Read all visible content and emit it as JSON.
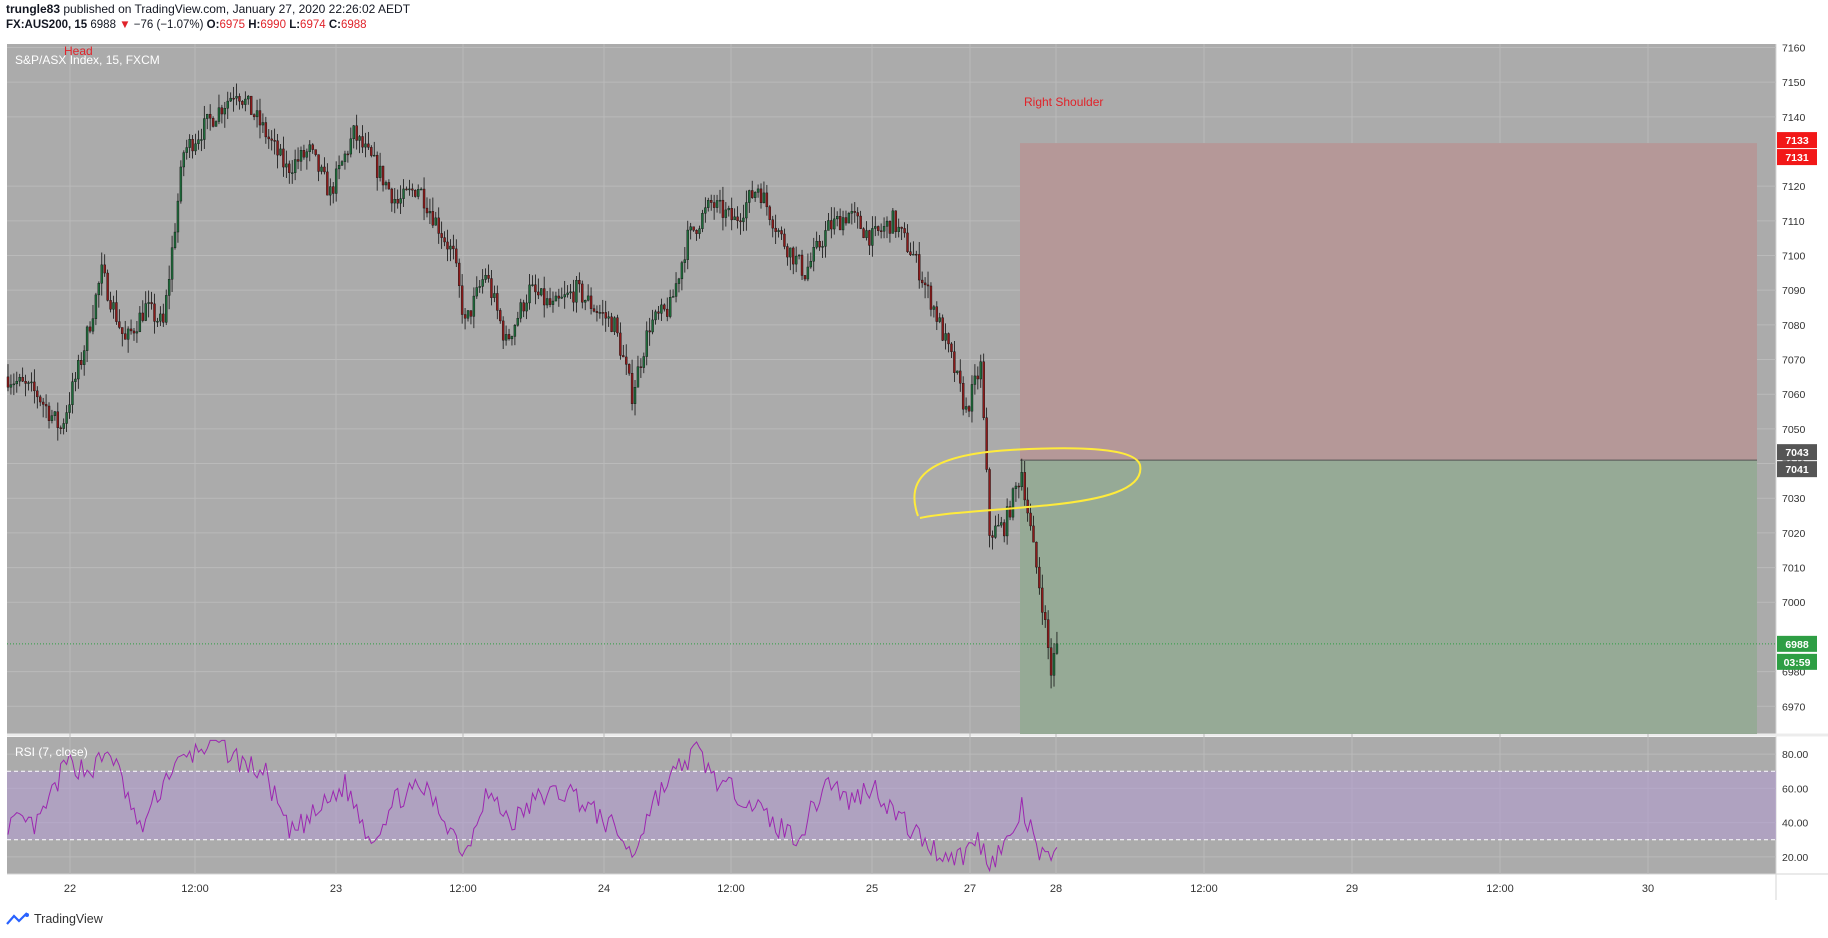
{
  "header": {
    "author": "trungle83",
    "published_text": "published on TradingView.com, January 27, 2020 22:26:02 AEDT",
    "symbol": "FX:AUS200, 15",
    "last": "6988",
    "change": "−76 (−1.07%)",
    "o_label": "O:",
    "o_value": "6975",
    "h_label": "H:",
    "h_value": "6990",
    "l_label": "L:",
    "l_value": "6974",
    "c_label": "C:",
    "c_value": "6988"
  },
  "chart": {
    "title": "S&P/ASX Index, 15, FXCM",
    "annotation_head": "Head",
    "annotation_right_shoulder": "Right Shoulder",
    "rsi_label": "RSI (7, close)"
  },
  "footer": {
    "brand": "TradingView",
    "logo_icon": "tradingview-logo-icon"
  },
  "colors": {
    "chart_bg": "#ababab",
    "grid": "#bababa",
    "up": "#1e6b3a",
    "down": "#8b1a1a",
    "stop_zone": "#b59898",
    "target_zone": "#96aa96",
    "rsi_line": "#9c27b0",
    "rsi_band": "#b39dce",
    "highlight": "#ffeb3b",
    "price_tag": "#2e9e44",
    "stop_tag": "#f21818"
  },
  "chart_data": [
    {
      "type": "candlestick",
      "title": "S&P/ASX Index, 15, FXCM",
      "y_ticks": [
        6970,
        6980,
        7000,
        7010,
        7020,
        7030,
        7040,
        7050,
        7060,
        7070,
        7080,
        7090,
        7100,
        7110,
        7120,
        7140,
        7150,
        7160
      ],
      "ylim": [
        6962,
        7161
      ],
      "x_ticks": [
        "22",
        "12:00",
        "23",
        "12:00",
        "24",
        "12:00",
        "25",
        "27",
        "28",
        "12:00",
        "29",
        "12:00",
        "30"
      ],
      "anchors": [
        [
          0,
          7065
        ],
        [
          10,
          7060
        ],
        [
          18,
          7050
        ],
        [
          25,
          7070
        ],
        [
          32,
          7095
        ],
        [
          40,
          7075
        ],
        [
          47,
          7085
        ],
        [
          53,
          7080
        ],
        [
          60,
          7130
        ],
        [
          70,
          7140
        ],
        [
          78,
          7148
        ],
        [
          86,
          7138
        ],
        [
          95,
          7125
        ],
        [
          103,
          7130
        ],
        [
          110,
          7118
        ],
        [
          118,
          7135
        ],
        [
          126,
          7125
        ],
        [
          133,
          7115
        ],
        [
          140,
          7120
        ],
        [
          146,
          7110
        ],
        [
          152,
          7100
        ],
        [
          156,
          7080
        ],
        [
          163,
          7095
        ],
        [
          170,
          7075
        ],
        [
          178,
          7090
        ],
        [
          186,
          7085
        ],
        [
          194,
          7090
        ],
        [
          200,
          7085
        ],
        [
          207,
          7080
        ],
        [
          213,
          7060
        ],
        [
          219,
          7080
        ],
        [
          226,
          7085
        ],
        [
          232,
          7105
        ],
        [
          240,
          7115
        ],
        [
          248,
          7110
        ],
        [
          256,
          7120
        ],
        [
          264,
          7105
        ],
        [
          272,
          7095
        ],
        [
          280,
          7108
        ],
        [
          287,
          7112
        ],
        [
          295,
          7105
        ],
        [
          302,
          7110
        ],
        [
          309,
          7100
        ],
        [
          316,
          7085
        ],
        [
          322,
          7070
        ],
        [
          327,
          7055
        ],
        [
          332,
          7068
        ],
        [
          335,
          7020
        ],
        [
          340,
          7022
        ],
        [
          346,
          7038
        ],
        [
          350,
          7015
        ],
        [
          353,
          7000
        ],
        [
          356,
          6980
        ],
        [
          358,
          6988
        ]
      ],
      "last_price": 6988,
      "countdown": "03:59",
      "position": {
        "type": "short",
        "entry_upper": 7043,
        "entry_lower": 7041,
        "stop_upper": 7133,
        "stop_lower": 7131,
        "target": 6962
      },
      "price_tags": [
        "7133",
        "7131",
        "7043",
        "7041",
        "6988",
        "03:59"
      ]
    },
    {
      "type": "line",
      "title": "RSI (7, close)",
      "y_ticks": [
        "80.00",
        "60.00",
        "40.00",
        "20.00"
      ],
      "ylim": [
        10,
        90
      ],
      "band": [
        30,
        70
      ],
      "anchors": [
        [
          0,
          40
        ],
        [
          10,
          38
        ],
        [
          20,
          75
        ],
        [
          28,
          70
        ],
        [
          35,
          82
        ],
        [
          45,
          35
        ],
        [
          55,
          70
        ],
        [
          63,
          80
        ],
        [
          70,
          88
        ],
        [
          80,
          75
        ],
        [
          88,
          68
        ],
        [
          96,
          33
        ],
        [
          105,
          45
        ],
        [
          115,
          62
        ],
        [
          124,
          30
        ],
        [
          133,
          55
        ],
        [
          142,
          60
        ],
        [
          150,
          40
        ],
        [
          156,
          22
        ],
        [
          163,
          58
        ],
        [
          172,
          40
        ],
        [
          182,
          56
        ],
        [
          192,
          58
        ],
        [
          200,
          46
        ],
        [
          208,
          35
        ],
        [
          213,
          20
        ],
        [
          220,
          52
        ],
        [
          228,
          70
        ],
        [
          235,
          82
        ],
        [
          243,
          62
        ],
        [
          252,
          55
        ],
        [
          262,
          38
        ],
        [
          270,
          32
        ],
        [
          280,
          66
        ],
        [
          287,
          52
        ],
        [
          295,
          62
        ],
        [
          303,
          45
        ],
        [
          310,
          33
        ],
        [
          318,
          22
        ],
        [
          325,
          20
        ],
        [
          331,
          30
        ],
        [
          335,
          17
        ],
        [
          342,
          30
        ],
        [
          346,
          48
        ],
        [
          352,
          22
        ],
        [
          356,
          15
        ],
        [
          358,
          32
        ]
      ]
    }
  ]
}
